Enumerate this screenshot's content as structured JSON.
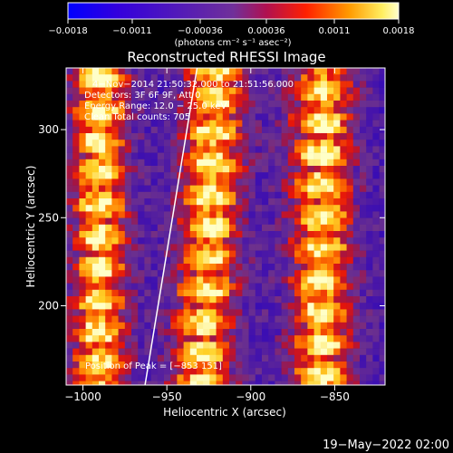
{
  "chart_data": {
    "type": "heatmap",
    "title": "Reconstructed RHESSI Image",
    "xlabel": "Heliocentric X (arcsec)",
    "ylabel": "Heliocentric Y (arcsec)",
    "xlim": [
      -1010,
      -820
    ],
    "ylim": [
      155,
      335
    ],
    "x_ticks": [
      -1000,
      -950,
      -900,
      -850
    ],
    "x_tick_labels": [
      "−1000",
      "−950",
      "−900",
      "−850"
    ],
    "y_ticks": [
      200,
      250,
      300
    ],
    "y_tick_labels": [
      "200",
      "250",
      "300"
    ],
    "colorbar": {
      "range": [
        -0.0018,
        0.0018
      ],
      "ticks": [
        -0.0018,
        -0.0011,
        -0.00036,
        0.00036,
        0.0011,
        0.0018
      ],
      "tick_labels": [
        "−0.0018",
        "−0.0011",
        "−0.00036",
        "0.00036",
        "0.0011",
        "0.0018"
      ],
      "units": "(photons cm⁻² s⁻¹ asec⁻²)"
    },
    "annotations": [
      "4−Nov−2014 21:50:32.000 to 21:51:56.000",
      "Detectors: 3F 6F 9F, Att 0",
      "Energy Range: 12.0 − 25.0 keV",
      "Clean    Total counts: 705"
    ],
    "peak_label": "Position of Peak = [−853 151]",
    "limb_line": {
      "x": [
        -963,
        -932
      ],
      "y": [
        155,
        335
      ]
    },
    "source_columns_x": [
      -990,
      -925,
      -858
    ],
    "colors": {
      "background": "#000000",
      "text": "#ffffff",
      "low": "#0000ff",
      "mid": "#7b2f9a",
      "high": "#ffff80"
    }
  },
  "footer": {
    "date": "19−May−2022 02:00"
  }
}
